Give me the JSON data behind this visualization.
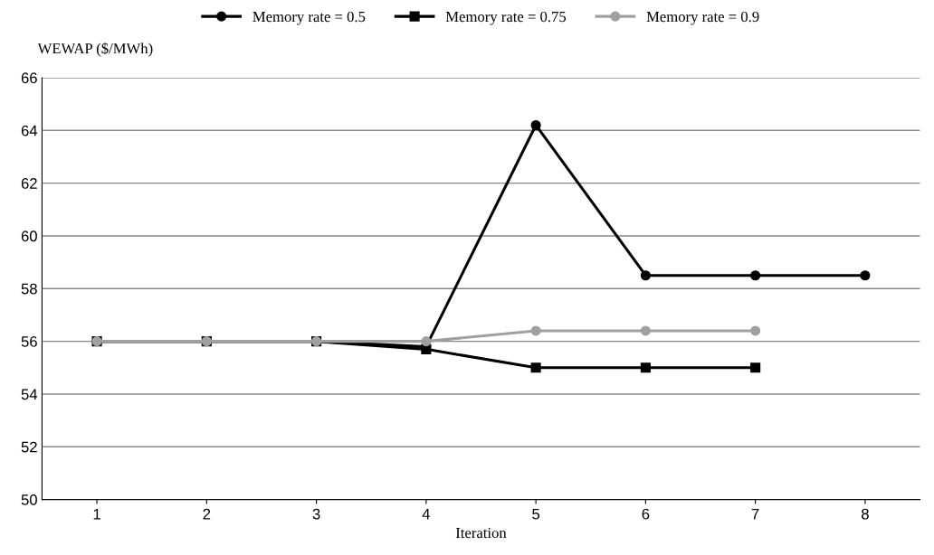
{
  "chart_data": {
    "type": "line",
    "xlabel": "Iteration",
    "ylabel": "WEWAP ($/MWh)",
    "categories": [
      "1",
      "2",
      "3",
      "4",
      "5",
      "6",
      "7",
      "8"
    ],
    "series": [
      {
        "name": "Memory rate = 0.5",
        "color": "#000000",
        "marker": "circle",
        "values": [
          56.0,
          56.0,
          56.0,
          55.8,
          64.2,
          58.5,
          58.5,
          58.5
        ]
      },
      {
        "name": "Memory rate = 0.75",
        "color": "#000000",
        "marker": "square",
        "values": [
          56.0,
          56.0,
          56.0,
          55.7,
          55.0,
          55.0,
          55.0,
          null
        ]
      },
      {
        "name": "Memory rate = 0.9",
        "color": "#a0a0a0",
        "marker": "circle",
        "values": [
          56.0,
          56.0,
          56.0,
          56.0,
          56.4,
          56.4,
          56.4,
          null
        ]
      }
    ],
    "ylim": [
      50,
      66
    ],
    "yticks": [
      50,
      52,
      54,
      56,
      58,
      60,
      62,
      64,
      66
    ],
    "grid": "y",
    "legend": "top",
    "line_style": "solid"
  }
}
